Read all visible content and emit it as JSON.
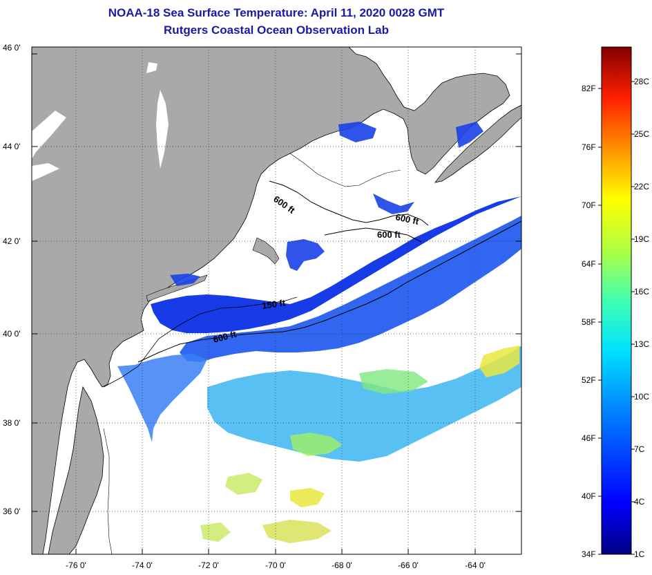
{
  "title_line1": "NOAA-18 Sea Surface Temperature:  April 11, 2020 0028 GMT",
  "title_line2": "Rutgers Coastal Ocean Observation Lab",
  "latitude_ticks": [
    "46 0'",
    "44 0'",
    "42 0'",
    "40 0'",
    "38 0'",
    "36 0'"
  ],
  "longitude_ticks": [
    "-76 0'",
    "-74 0'",
    "-72 0'",
    "-70 0'",
    "-68 0'",
    "-66 0'",
    "-64 0'"
  ],
  "contour_labels": [
    "600 ft",
    "600 ft",
    "600 ft",
    "150 ft",
    "600 ft"
  ],
  "colorbar": {
    "fahrenheit_labels": [
      "82F",
      "76F",
      "70F",
      "64F",
      "58F",
      "52F",
      "46F",
      "40F",
      "34F"
    ],
    "celsius_labels": [
      "28C",
      "25C",
      "22C",
      "19C",
      "16C",
      "13C",
      "10C",
      "7C",
      "4C",
      "1C"
    ],
    "colors": [
      "#000080",
      "#0000ff",
      "#0090ff",
      "#00e0ff",
      "#40ffb0",
      "#b0ff40",
      "#ffff00",
      "#ff9000",
      "#ff2000",
      "#800000"
    ]
  },
  "colors": {
    "land": "#a9a9a9",
    "no_data": "#ffffff",
    "title": "#1a1aa8"
  }
}
